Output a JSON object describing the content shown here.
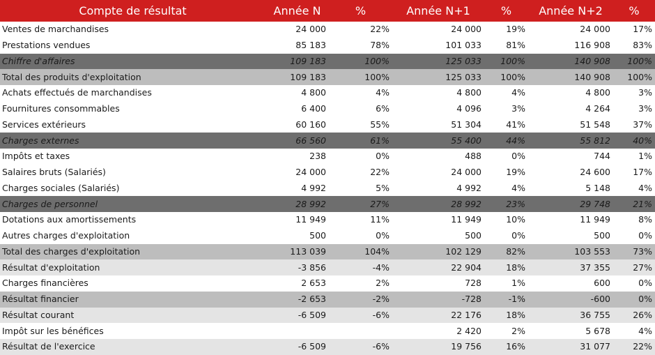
{
  "header": {
    "label": "Compte de résultat",
    "columns": [
      "Année N",
      "%",
      "Année N+1",
      "%",
      "Année N+2",
      "%"
    ]
  },
  "rows": [
    {
      "style": "white",
      "label": "Ventes de marchandises",
      "cells": [
        "24 000",
        "22%",
        "24 000",
        "19%",
        "24 000",
        "17%"
      ]
    },
    {
      "style": "white",
      "label": "Prestations vendues",
      "cells": [
        "85 183",
        "78%",
        "101 033",
        "81%",
        "116 908",
        "83%"
      ]
    },
    {
      "style": "dark",
      "label": "Chiffre d'affaires",
      "cells": [
        "109 183",
        "100%",
        "125 033",
        "100%",
        "140 908",
        "100%"
      ]
    },
    {
      "style": "gray",
      "label": "Total des produits d'exploitation",
      "cells": [
        "109 183",
        "100%",
        "125 033",
        "100%",
        "140 908",
        "100%"
      ]
    },
    {
      "style": "white",
      "label": "Achats effectués de marchandises",
      "cells": [
        "4 800",
        "4%",
        "4 800",
        "4%",
        "4 800",
        "3%"
      ]
    },
    {
      "style": "white",
      "label": "Fournitures consommables",
      "cells": [
        "6 400",
        "6%",
        "4 096",
        "3%",
        "4 264",
        "3%"
      ]
    },
    {
      "style": "white",
      "label": "Services extérieurs",
      "cells": [
        "60 160",
        "55%",
        "51 304",
        "41%",
        "51 548",
        "37%"
      ]
    },
    {
      "style": "dark",
      "label": "Charges externes",
      "cells": [
        "66 560",
        "61%",
        "55 400",
        "44%",
        "55 812",
        "40%"
      ]
    },
    {
      "style": "white",
      "label": "Impôts et taxes",
      "cells": [
        "238",
        "0%",
        "488",
        "0%",
        "744",
        "1%"
      ]
    },
    {
      "style": "white",
      "label": "Salaires bruts (Salariés)",
      "cells": [
        "24 000",
        "22%",
        "24 000",
        "19%",
        "24 600",
        "17%"
      ]
    },
    {
      "style": "white",
      "label": "Charges sociales (Salariés)",
      "cells": [
        "4 992",
        "5%",
        "4 992",
        "4%",
        "5 148",
        "4%"
      ]
    },
    {
      "style": "dark",
      "label": "Charges de personnel",
      "cells": [
        "28 992",
        "27%",
        "28 992",
        "23%",
        "29 748",
        "21%"
      ]
    },
    {
      "style": "white",
      "label": "Dotations aux amortissements",
      "cells": [
        "11 949",
        "11%",
        "11 949",
        "10%",
        "11 949",
        "8%"
      ]
    },
    {
      "style": "white",
      "label": "Autres charges d'exploitation",
      "cells": [
        "500",
        "0%",
        "500",
        "0%",
        "500",
        "0%"
      ]
    },
    {
      "style": "gray",
      "label": "Total des charges d'exploitation",
      "cells": [
        "113 039",
        "104%",
        "102 129",
        "82%",
        "103 553",
        "73%"
      ]
    },
    {
      "style": "light big",
      "label": "Résultat d'exploitation",
      "cells": [
        "-3 856",
        "-4%",
        "22 904",
        "18%",
        "37 355",
        "27%"
      ]
    },
    {
      "style": "white",
      "label": "Charges financières",
      "cells": [
        "2 653",
        "2%",
        "728",
        "1%",
        "600",
        "0%"
      ]
    },
    {
      "style": "gray",
      "label": "Résultat financier",
      "cells": [
        "-2 653",
        "-2%",
        "-728",
        "-1%",
        "-600",
        "0%"
      ]
    },
    {
      "style": "light big",
      "label": "Résultat courant",
      "cells": [
        "-6 509",
        "-6%",
        "22 176",
        "18%",
        "36 755",
        "26%"
      ]
    },
    {
      "style": "white",
      "label": "Impôt sur les bénéfices",
      "cells": [
        "",
        "",
        "2 420",
        "2%",
        "5 678",
        "4%"
      ]
    },
    {
      "style": "light big",
      "label": "Résultat de l'exercice",
      "cells": [
        "-6 509",
        "-6%",
        "19 756",
        "16%",
        "31 077",
        "22%"
      ]
    }
  ]
}
